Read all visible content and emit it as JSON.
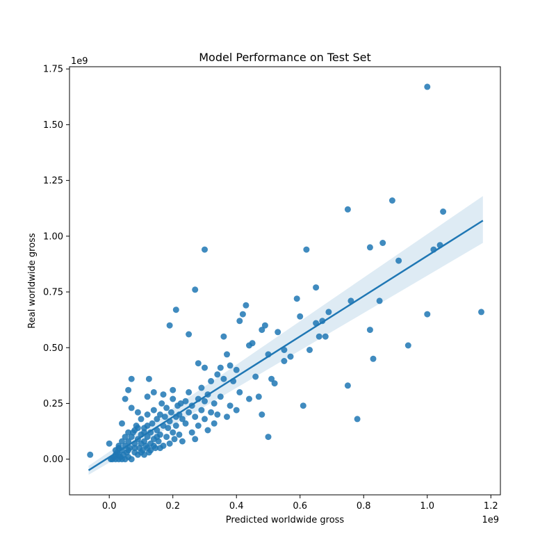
{
  "chart_data": {
    "type": "scatter",
    "title": "Model Performance on Test Set",
    "xlabel": "Predicted worldwide gross",
    "ylabel": "Real worldwide gross",
    "x_scale_label": "1e9",
    "y_scale_label": "1e9",
    "xlim": [
      -0.125,
      1.23
    ],
    "ylim": [
      -0.16,
      1.76
    ],
    "xticks": [
      0.0,
      0.2,
      0.4,
      0.6,
      0.8,
      1.0,
      1.2
    ],
    "xtick_labels": [
      "0.0",
      "0.2",
      "0.4",
      "0.6",
      "0.8",
      "1.0",
      "1.2"
    ],
    "yticks": [
      0.0,
      0.25,
      0.5,
      0.75,
      1.0,
      1.25,
      1.5,
      1.75
    ],
    "ytick_labels": [
      "0.00",
      "0.25",
      "0.50",
      "0.75",
      "1.00",
      "1.25",
      "1.50",
      "1.75"
    ],
    "grid": false,
    "colors": {
      "points": "#1f77b4",
      "line": "#1f77b4",
      "band": "#1f77b4"
    },
    "regression": {
      "x": [
        -0.065,
        1.175
      ],
      "y": [
        -0.05,
        1.07
      ],
      "ci_upper": [
        -0.03,
        1.18
      ],
      "ci_lower": [
        -0.07,
        0.97
      ]
    },
    "points": [
      [
        -0.06,
        0.02
      ],
      [
        0.0,
        0.07
      ],
      [
        0.005,
        0.0
      ],
      [
        0.01,
        0.0
      ],
      [
        0.015,
        0.01
      ],
      [
        0.02,
        0.02
      ],
      [
        0.02,
        0.0
      ],
      [
        0.025,
        0.03
      ],
      [
        0.03,
        0.0
      ],
      [
        0.03,
        0.05
      ],
      [
        0.035,
        0.01
      ],
      [
        0.04,
        0.04
      ],
      [
        0.04,
        0.0
      ],
      [
        0.045,
        0.02
      ],
      [
        0.05,
        0.06
      ],
      [
        0.05,
        0.0
      ],
      [
        0.055,
        0.03
      ],
      [
        0.06,
        0.08
      ],
      [
        0.06,
        0.01
      ],
      [
        0.065,
        0.05
      ],
      [
        0.07,
        0.1
      ],
      [
        0.07,
        0.0
      ],
      [
        0.075,
        0.12
      ],
      [
        0.08,
        0.03
      ],
      [
        0.08,
        0.07
      ],
      [
        0.085,
        0.15
      ],
      [
        0.09,
        0.02
      ],
      [
        0.09,
        0.09
      ],
      [
        0.095,
        0.05
      ],
      [
        0.1,
        0.11
      ],
      [
        0.1,
        0.18
      ],
      [
        0.105,
        0.04
      ],
      [
        0.11,
        0.08
      ],
      [
        0.11,
        0.14
      ],
      [
        0.115,
        0.06
      ],
      [
        0.12,
        0.1
      ],
      [
        0.12,
        0.2
      ],
      [
        0.125,
        0.03
      ],
      [
        0.13,
        0.12
      ],
      [
        0.13,
        0.07
      ],
      [
        0.135,
        0.16
      ],
      [
        0.14,
        0.09
      ],
      [
        0.14,
        0.22
      ],
      [
        0.145,
        0.05
      ],
      [
        0.15,
        0.13
      ],
      [
        0.15,
        0.18
      ],
      [
        0.155,
        0.08
      ],
      [
        0.16,
        0.2
      ],
      [
        0.16,
        0.11
      ],
      [
        0.165,
        0.25
      ],
      [
        0.17,
        0.15
      ],
      [
        0.17,
        0.06
      ],
      [
        0.175,
        0.19
      ],
      [
        0.18,
        0.1
      ],
      [
        0.18,
        0.23
      ],
      [
        0.185,
        0.14
      ],
      [
        0.19,
        0.07
      ],
      [
        0.19,
        0.17
      ],
      [
        0.195,
        0.21
      ],
      [
        0.2,
        0.12
      ],
      [
        0.2,
        0.27
      ],
      [
        0.205,
        0.09
      ],
      [
        0.21,
        0.19
      ],
      [
        0.21,
        0.15
      ],
      [
        0.215,
        0.24
      ],
      [
        0.22,
        0.2
      ],
      [
        0.22,
        0.11
      ],
      [
        0.225,
        0.25
      ],
      [
        0.23,
        0.18
      ],
      [
        0.23,
        0.08
      ],
      [
        0.24,
        0.26
      ],
      [
        0.24,
        0.16
      ],
      [
        0.25,
        0.21
      ],
      [
        0.25,
        0.3
      ],
      [
        0.26,
        0.12
      ],
      [
        0.26,
        0.24
      ],
      [
        0.27,
        0.19
      ],
      [
        0.27,
        0.09
      ],
      [
        0.28,
        0.27
      ],
      [
        0.28,
        0.15
      ],
      [
        0.29,
        0.22
      ],
      [
        0.29,
        0.32
      ],
      [
        0.3,
        0.18
      ],
      [
        0.3,
        0.26
      ],
      [
        0.31,
        0.13
      ],
      [
        0.31,
        0.29
      ],
      [
        0.32,
        0.21
      ],
      [
        0.32,
        0.35
      ],
      [
        0.33,
        0.25
      ],
      [
        0.33,
        0.16
      ],
      [
        0.34,
        0.38
      ],
      [
        0.34,
        0.2
      ],
      [
        0.35,
        0.28
      ],
      [
        0.36,
        0.36
      ],
      [
        0.37,
        0.19
      ],
      [
        0.37,
        0.47
      ],
      [
        0.38,
        0.24
      ],
      [
        0.38,
        0.42
      ],
      [
        0.39,
        0.35
      ],
      [
        0.4,
        0.22
      ],
      [
        0.4,
        0.4
      ],
      [
        0.41,
        0.3
      ],
      [
        0.41,
        0.62
      ],
      [
        0.42,
        0.65
      ],
      [
        0.43,
        0.69
      ],
      [
        0.44,
        0.27
      ],
      [
        0.44,
        0.51
      ],
      [
        0.45,
        0.52
      ],
      [
        0.46,
        0.37
      ],
      [
        0.47,
        0.28
      ],
      [
        0.48,
        0.58
      ],
      [
        0.48,
        0.2
      ],
      [
        0.49,
        0.6
      ],
      [
        0.5,
        0.47
      ],
      [
        0.5,
        0.1
      ],
      [
        0.51,
        0.36
      ],
      [
        0.52,
        0.34
      ],
      [
        0.53,
        0.57
      ],
      [
        0.55,
        0.44
      ],
      [
        0.55,
        0.49
      ],
      [
        0.57,
        0.46
      ],
      [
        0.59,
        0.72
      ],
      [
        0.6,
        0.64
      ],
      [
        0.61,
        0.24
      ],
      [
        0.62,
        0.94
      ],
      [
        0.63,
        0.49
      ],
      [
        0.65,
        0.77
      ],
      [
        0.65,
        0.61
      ],
      [
        0.66,
        0.55
      ],
      [
        0.67,
        0.62
      ],
      [
        0.68,
        0.55
      ],
      [
        0.69,
        0.66
      ],
      [
        0.75,
        0.33
      ],
      [
        0.75,
        1.12
      ],
      [
        0.76,
        0.71
      ],
      [
        0.78,
        0.18
      ],
      [
        0.82,
        0.95
      ],
      [
        0.82,
        0.58
      ],
      [
        0.83,
        0.45
      ],
      [
        0.85,
        0.71
      ],
      [
        0.86,
        0.97
      ],
      [
        0.89,
        1.16
      ],
      [
        0.91,
        0.89
      ],
      [
        0.94,
        0.51
      ],
      [
        1.0,
        1.67
      ],
      [
        1.0,
        0.65
      ],
      [
        1.02,
        0.94
      ],
      [
        1.04,
        0.96
      ],
      [
        1.05,
        1.11
      ],
      [
        1.17,
        0.66
      ],
      [
        0.06,
        0.31
      ],
      [
        0.07,
        0.36
      ],
      [
        0.04,
        0.16
      ],
      [
        0.05,
        0.27
      ],
      [
        0.07,
        0.23
      ],
      [
        0.09,
        0.21
      ],
      [
        0.125,
        0.36
      ],
      [
        0.12,
        0.28
      ],
      [
        0.14,
        0.3
      ],
      [
        0.17,
        0.29
      ],
      [
        0.19,
        0.6
      ],
      [
        0.2,
        0.31
      ],
      [
        0.21,
        0.67
      ],
      [
        0.25,
        0.56
      ],
      [
        0.27,
        0.76
      ],
      [
        0.3,
        0.94
      ],
      [
        0.28,
        0.43
      ],
      [
        0.3,
        0.41
      ],
      [
        0.35,
        0.41
      ],
      [
        0.36,
        0.55
      ],
      [
        0.03,
        0.06
      ],
      [
        0.04,
        0.08
      ],
      [
        0.06,
        0.04
      ],
      [
        0.08,
        0.05
      ],
      [
        0.1,
        0.07
      ],
      [
        0.11,
        0.02
      ],
      [
        0.12,
        0.05
      ],
      [
        0.13,
        0.04
      ],
      [
        0.14,
        0.06
      ],
      [
        0.16,
        0.05
      ],
      [
        0.02,
        0.04
      ],
      [
        0.03,
        0.02
      ],
      [
        0.05,
        0.1
      ],
      [
        0.06,
        0.12
      ],
      [
        0.08,
        0.13
      ],
      [
        0.09,
        0.14
      ],
      [
        0.1,
        0.03
      ],
      [
        0.11,
        0.12
      ],
      [
        0.12,
        0.15
      ],
      [
        0.15,
        0.1
      ]
    ]
  }
}
